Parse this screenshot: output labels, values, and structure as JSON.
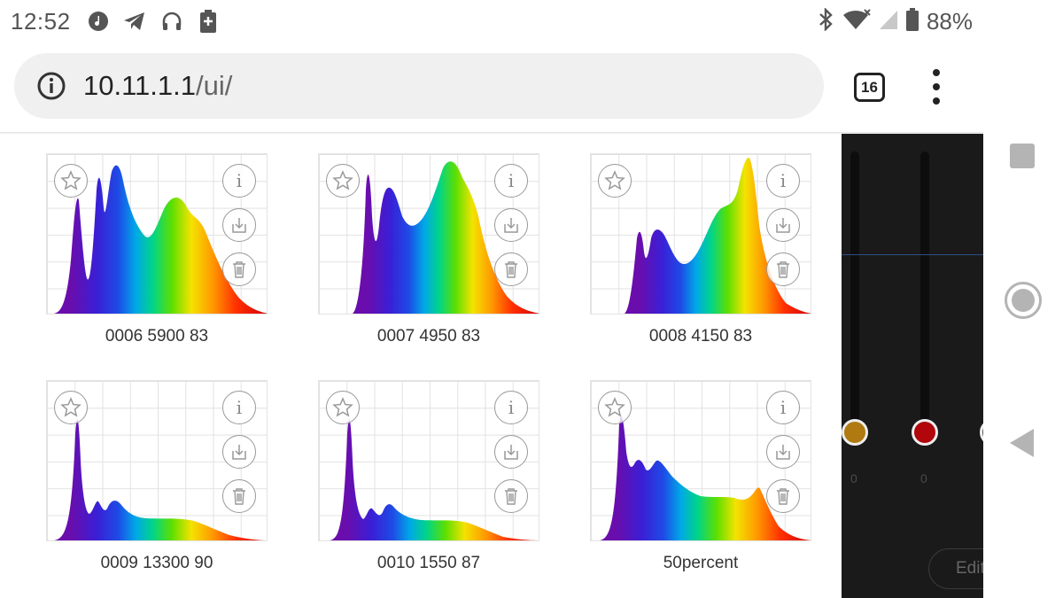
{
  "status_bar": {
    "time": "12:52",
    "left_icons": [
      "music-icon",
      "telegram-icon",
      "headphones-icon",
      "battery-saver-icon"
    ],
    "right_icons": [
      "bluetooth-icon",
      "wifi-icon",
      "signal-icon",
      "battery-icon"
    ],
    "battery": "88%"
  },
  "browser": {
    "url_host": "10.11.1.1",
    "url_path": "/ui/",
    "tab_count": "16"
  },
  "spectra": [
    {
      "label": "0006 5900 83"
    },
    {
      "label": "0007 4950 83"
    },
    {
      "label": "0008 4150 83"
    },
    {
      "label": "0009 13300 90"
    },
    {
      "label": "0010 1550 87"
    },
    {
      "label": "50percent"
    }
  ],
  "side_panel": {
    "sliders": [
      {
        "color": "#b07a10",
        "value": "0"
      },
      {
        "color": "#b0060c",
        "value": "0"
      }
    ],
    "edit_label": "Edit"
  },
  "colors": {
    "spectrum_stops": [
      "#6a0dad",
      "#1e33e6",
      "#00a7e8",
      "#00d48a",
      "#5ddf00",
      "#f4e300",
      "#ff9900",
      "#ff3000",
      "#e00000"
    ]
  }
}
